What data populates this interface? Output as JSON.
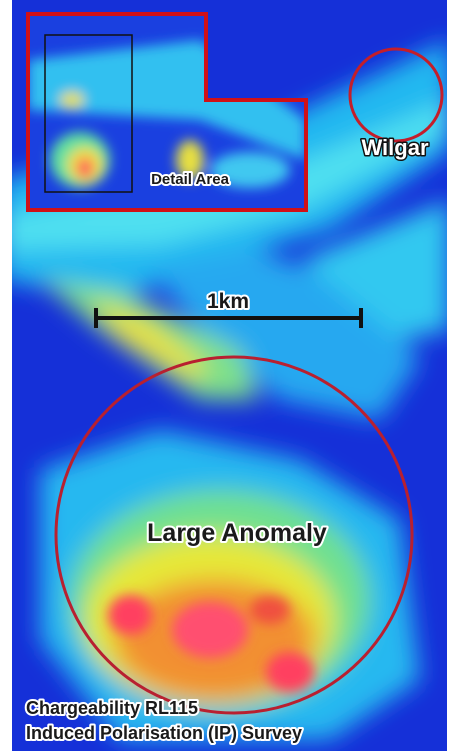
{
  "labels": {
    "wilgar": "Wilgar",
    "detail_area": "Detail Area",
    "scale": "1km",
    "anomaly": "Large Anomaly",
    "caption": [
      "Chargeability RL115",
      "Induced Polarisation (IP) Survey"
    ]
  }
}
